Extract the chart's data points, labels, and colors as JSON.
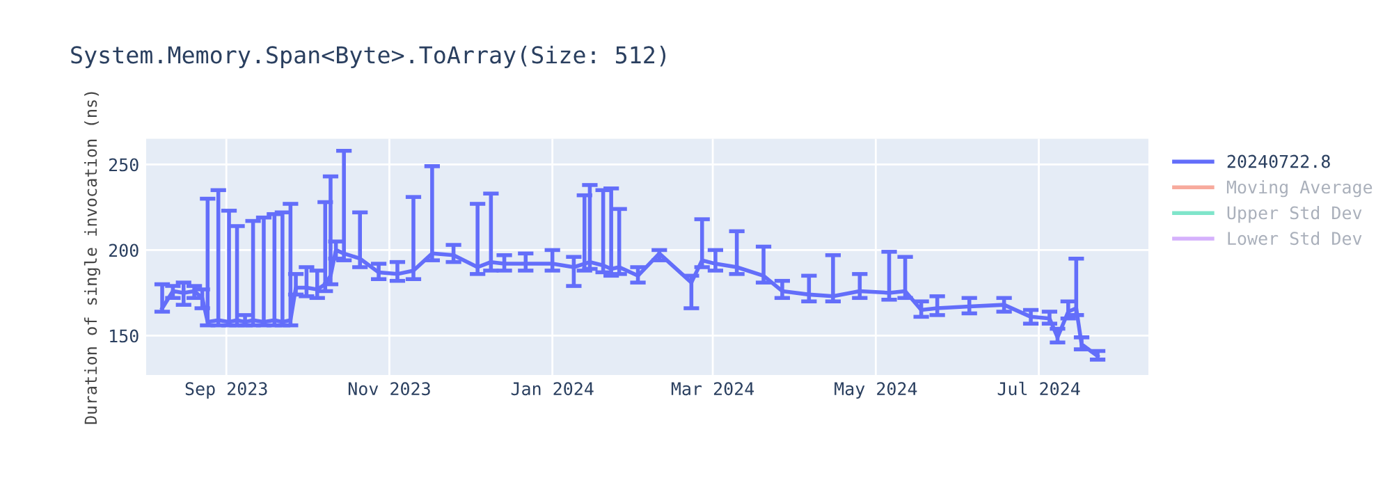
{
  "chart_data": {
    "type": "line",
    "title": "System.Memory.Span<Byte>.ToArray(Size: 512)",
    "ylabel": "Duration of single invocation (ns)",
    "xlim": [
      "2023-08-02",
      "2024-08-11"
    ],
    "xticks": [
      {
        "value": "2023-09-01",
        "label": "Sep 2023"
      },
      {
        "value": "2023-11-01",
        "label": "Nov 2023"
      },
      {
        "value": "2024-01-01",
        "label": "Jan 2024"
      },
      {
        "value": "2024-03-01",
        "label": "Mar 2024"
      },
      {
        "value": "2024-05-01",
        "label": "May 2024"
      },
      {
        "value": "2024-07-01",
        "label": "Jul 2024"
      }
    ],
    "ylim": [
      127,
      265
    ],
    "yticks": [
      150,
      200,
      250
    ],
    "grid": true,
    "legend": "top right",
    "series": [
      {
        "name": "20240722.8",
        "color": "#636efa",
        "x": [
          "2023-08-08",
          "2023-08-12",
          "2023-08-16",
          "2023-08-20",
          "2023-08-23",
          "2023-08-25",
          "2023-08-29",
          "2023-09-02",
          "2023-09-05",
          "2023-09-08",
          "2023-09-11",
          "2023-09-15",
          "2023-09-19",
          "2023-09-22",
          "2023-09-25",
          "2023-09-27",
          "2023-10-01",
          "2023-10-05",
          "2023-10-08",
          "2023-10-10",
          "2023-10-12",
          "2023-10-15",
          "2023-10-21",
          "2023-10-28",
          "2023-11-04",
          "2023-11-10",
          "2023-11-17",
          "2023-11-25",
          "2023-12-04",
          "2023-12-09",
          "2023-12-14",
          "2023-12-22",
          "2024-01-01",
          "2024-01-09",
          "2024-01-13",
          "2024-01-15",
          "2024-01-20",
          "2024-01-23",
          "2024-01-26",
          "2024-02-02",
          "2024-02-10",
          "2024-02-22",
          "2024-02-26",
          "2024-03-02",
          "2024-03-10",
          "2024-03-20",
          "2024-03-27",
          "2024-04-06",
          "2024-04-15",
          "2024-04-25",
          "2024-05-06",
          "2024-05-12",
          "2024-05-18",
          "2024-05-24",
          "2024-06-05",
          "2024-06-18",
          "2024-06-28",
          "2024-07-05",
          "2024-07-08",
          "2024-07-12",
          "2024-07-15",
          "2024-07-17",
          "2024-07-23"
        ],
        "values": [
          166,
          176,
          175,
          176,
          172,
          158,
          159,
          158,
          159,
          158,
          159,
          158,
          159,
          158,
          159,
          178,
          178,
          177,
          180,
          185,
          200,
          198,
          195,
          187,
          186,
          188,
          198,
          197,
          190,
          193,
          192,
          192,
          192,
          190,
          192,
          193,
          191,
          189,
          190,
          185,
          198,
          181,
          194,
          192,
          190,
          185,
          176,
          174,
          173,
          176,
          175,
          176,
          165,
          166,
          167,
          168,
          161,
          160,
          149,
          164,
          166,
          145,
          138
        ],
        "errors": [
          [
            164,
            180
          ],
          [
            172,
            179
          ],
          [
            168,
            181
          ],
          [
            172,
            179
          ],
          [
            166,
            177
          ],
          [
            156,
            230
          ],
          [
            156,
            235
          ],
          [
            156,
            223
          ],
          [
            156,
            214
          ],
          [
            156,
            162
          ],
          [
            156,
            217
          ],
          [
            156,
            219
          ],
          [
            156,
            221
          ],
          [
            156,
            222
          ],
          [
            156,
            227
          ],
          [
            174,
            186
          ],
          [
            173,
            190
          ],
          [
            172,
            188
          ],
          [
            176,
            228
          ],
          [
            180,
            243
          ],
          [
            195,
            205
          ],
          [
            194,
            258
          ],
          [
            190,
            222
          ],
          [
            183,
            192
          ],
          [
            182,
            193
          ],
          [
            183,
            231
          ],
          [
            194,
            249
          ],
          [
            193,
            203
          ],
          [
            186,
            227
          ],
          [
            188,
            233
          ],
          [
            188,
            197
          ],
          [
            188,
            198
          ],
          [
            188,
            200
          ],
          [
            179,
            196
          ],
          [
            188,
            232
          ],
          [
            189,
            238
          ],
          [
            187,
            235
          ],
          [
            185,
            236
          ],
          [
            186,
            224
          ],
          [
            181,
            190
          ],
          [
            194,
            200
          ],
          [
            166,
            185
          ],
          [
            190,
            218
          ],
          [
            188,
            200
          ],
          [
            186,
            211
          ],
          [
            181,
            202
          ],
          [
            172,
            182
          ],
          [
            170,
            185
          ],
          [
            170,
            197
          ],
          [
            172,
            186
          ],
          [
            171,
            199
          ],
          [
            172,
            196
          ],
          [
            161,
            170
          ],
          [
            162,
            173
          ],
          [
            163,
            172
          ],
          [
            164,
            172
          ],
          [
            157,
            165
          ],
          [
            157,
            164
          ],
          [
            146,
            154
          ],
          [
            160,
            170
          ],
          [
            162,
            195
          ],
          [
            142,
            149
          ],
          [
            136,
            141
          ]
        ]
      },
      {
        "name": "Moving Average",
        "color": "#ef553b"
      },
      {
        "name": "Upper Std Dev",
        "color": "#00cc96"
      },
      {
        "name": "Lower Std Dev",
        "color": "#ab63fa"
      }
    ]
  }
}
